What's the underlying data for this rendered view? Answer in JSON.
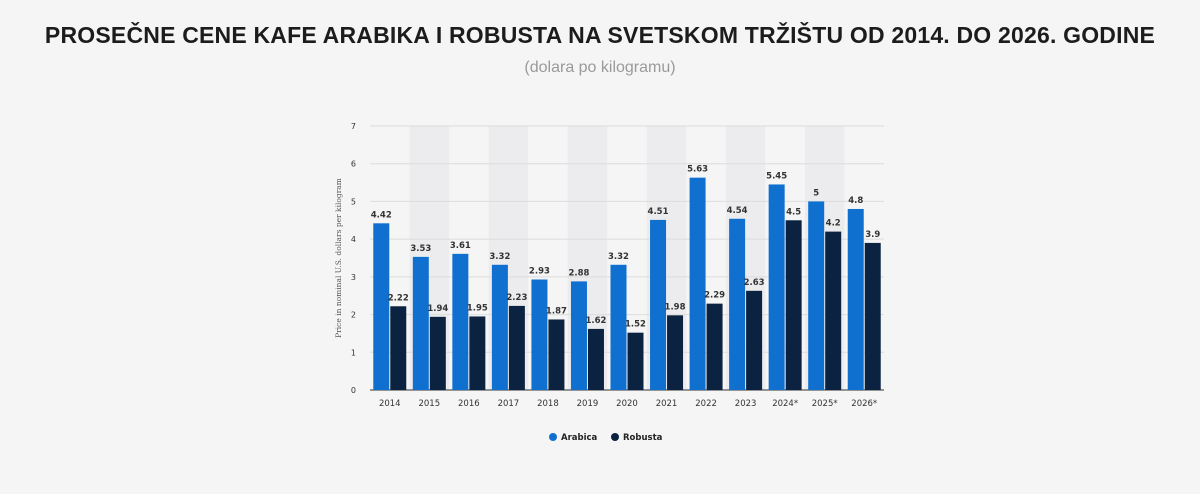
{
  "title": "PROSEČNE CENE KAFE ARABIKA I ROBUSTA NA SVETSKOM TRŽIŠTU OD 2014. DO 2026. GODINE",
  "subtitle": "(dolara po kilogramu)",
  "colors": {
    "arabica": "#1070d0",
    "robusta": "#0b2340",
    "band": "#ececee",
    "grid": "#dcdcdc",
    "axis": "#333333",
    "label": "#333333"
  },
  "chart_data": {
    "type": "bar",
    "ylabel": "Price in nominal U.S. dollars per kilogram",
    "ylim": [
      0,
      7
    ],
    "yticks": [
      0,
      1,
      2,
      3,
      4,
      5,
      6,
      7
    ],
    "categories": [
      "2014",
      "2015",
      "2016",
      "2017",
      "2018",
      "2019",
      "2020",
      "2021",
      "2022",
      "2023",
      "2024*",
      "2025*",
      "2026*"
    ],
    "series": [
      {
        "name": "Arabica",
        "values": [
          4.42,
          3.53,
          3.61,
          3.32,
          2.93,
          2.88,
          3.32,
          4.51,
          5.63,
          4.54,
          5.45,
          5,
          4.8
        ]
      },
      {
        "name": "Robusta",
        "values": [
          2.22,
          1.94,
          1.95,
          2.23,
          1.87,
          1.62,
          1.52,
          1.98,
          2.29,
          2.63,
          4.5,
          4.2,
          3.9
        ]
      }
    ],
    "grid": true,
    "legend_position": "bottom-center"
  }
}
